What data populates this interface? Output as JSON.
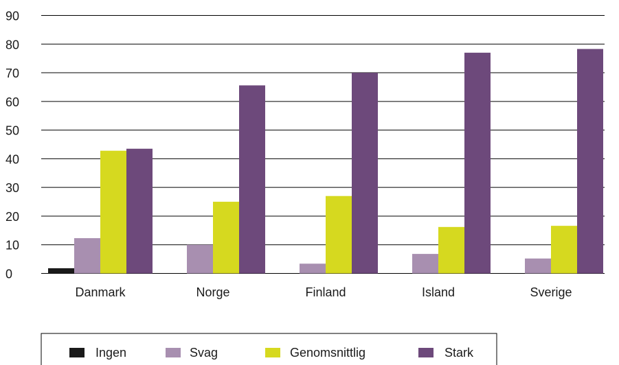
{
  "chart_data": {
    "type": "bar",
    "categories": [
      "Danmark",
      "Norge",
      "Finland",
      "Island",
      "Sverige"
    ],
    "series": [
      {
        "name": "Ingen",
        "color": "#1a1a1a",
        "values": [
          1.8,
          0,
          0,
          0,
          0
        ]
      },
      {
        "name": "Svag",
        "color": "#a88fb0",
        "values": [
          12.3,
          10.0,
          3.4,
          6.8,
          5.2
        ]
      },
      {
        "name": "Genomsnittlig",
        "color": "#d6d91f",
        "values": [
          42.8,
          25.0,
          27.0,
          16.2,
          16.6
        ]
      },
      {
        "name": "Stark",
        "color": "#6d497b",
        "values": [
          43.5,
          65.6,
          70.0,
          77.0,
          78.3
        ]
      }
    ],
    "yticks": [
      "0",
      "10",
      "20",
      "30",
      "40",
      "50",
      "60",
      "70",
      "80",
      "90"
    ],
    "ylim": [
      0,
      90
    ],
    "grid": true,
    "legend_position": "bottom"
  }
}
